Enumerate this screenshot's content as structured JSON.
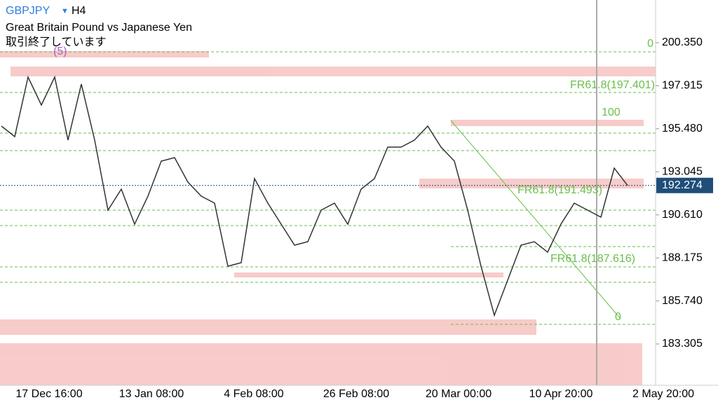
{
  "header": {
    "symbol": "GBPJPY",
    "timeframe": "H4",
    "description": "Great Britain Pound vs Japanese Yen",
    "status": "取引終了しています"
  },
  "chart_data": {
    "type": "line",
    "x_axis_labels": [
      "17 Dec 16:00",
      "13 Jan 08:00",
      "4 Feb 08:00",
      "26 Feb 08:00",
      "20 Mar 00:00",
      "10 Apr 20:00",
      "2 May 20:00"
    ],
    "series": [
      {
        "color": "#333333",
        "values": [
          195.633,
          195.038,
          198.408,
          196.822,
          198.408,
          194.84,
          198.011,
          194.84,
          190.876,
          192.065,
          190.083,
          191.669,
          193.651,
          193.849,
          192.462,
          191.669,
          191.272,
          187.705,
          187.903,
          192.66,
          191.272,
          190.083,
          188.894,
          189.092,
          190.876,
          191.272,
          190.083,
          192.065,
          192.66,
          194.444,
          194.444,
          194.84,
          195.633,
          194.444,
          193.651,
          190.876,
          187.705,
          184.93,
          186.912,
          188.894,
          189.092,
          188.498,
          190.083,
          191.272,
          190.876,
          190.48,
          193.254,
          192.274
        ]
      }
    ],
    "ylim": [
      180.967,
      202.768
    ],
    "yticks": [
      {
        "value": 200.35,
        "label": "200.350"
      },
      197.915,
      {
        "value": 195.48,
        "label": "195.480"
      },
      193.045,
      {
        "value": 190.61,
        "label": "190.610"
      },
      188.175,
      {
        "value": 185.74,
        "label": "185.740"
      },
      183.305
    ],
    "current_price": 192.274,
    "annotations": [
      "(5)",
      "0",
      "FR61.8(197.401)",
      "100",
      "FR61.8(191.493)",
      "FR61.8(187.616)",
      "0"
    ]
  }
}
